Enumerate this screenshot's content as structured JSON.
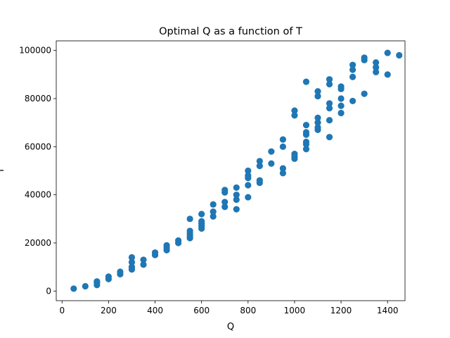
{
  "chart_data": {
    "type": "scatter",
    "title": "Optimal Q as a function of T",
    "xlabel": "Q",
    "ylabel": "T",
    "xlim": [
      -25,
      1475
    ],
    "ylim": [
      -4000,
      104000
    ],
    "xticks": [
      0,
      200,
      400,
      600,
      800,
      1000,
      1200,
      1400
    ],
    "yticks": [
      0,
      20000,
      40000,
      60000,
      80000,
      100000
    ],
    "grid": false,
    "color": "#1f77b4",
    "points": [
      [
        50,
        1000
      ],
      [
        100,
        2000
      ],
      [
        150,
        2500
      ],
      [
        150,
        3500
      ],
      [
        150,
        4000
      ],
      [
        200,
        5000
      ],
      [
        200,
        6000
      ],
      [
        250,
        7000
      ],
      [
        250,
        8000
      ],
      [
        300,
        9000
      ],
      [
        300,
        10000
      ],
      [
        300,
        12000
      ],
      [
        300,
        14000
      ],
      [
        350,
        11000
      ],
      [
        350,
        13000
      ],
      [
        400,
        15000
      ],
      [
        400,
        16000
      ],
      [
        450,
        17000
      ],
      [
        450,
        18000
      ],
      [
        450,
        19000
      ],
      [
        500,
        20000
      ],
      [
        500,
        21000
      ],
      [
        550,
        22000
      ],
      [
        550,
        23000
      ],
      [
        550,
        24000
      ],
      [
        550,
        25000
      ],
      [
        550,
        30000
      ],
      [
        600,
        26000
      ],
      [
        600,
        27000
      ],
      [
        600,
        28000
      ],
      [
        600,
        29000
      ],
      [
        600,
        32000
      ],
      [
        650,
        31000
      ],
      [
        650,
        33000
      ],
      [
        650,
        36000
      ],
      [
        700,
        35000
      ],
      [
        700,
        37000
      ],
      [
        700,
        41000
      ],
      [
        700,
        42000
      ],
      [
        750,
        34000
      ],
      [
        750,
        38000
      ],
      [
        750,
        40000
      ],
      [
        750,
        43000
      ],
      [
        800,
        39000
      ],
      [
        800,
        44000
      ],
      [
        800,
        47000
      ],
      [
        800,
        48000
      ],
      [
        800,
        50000
      ],
      [
        850,
        45000
      ],
      [
        850,
        46000
      ],
      [
        850,
        52000
      ],
      [
        850,
        54000
      ],
      [
        900,
        53000
      ],
      [
        900,
        58000
      ],
      [
        950,
        49000
      ],
      [
        950,
        51000
      ],
      [
        950,
        60000
      ],
      [
        950,
        63000
      ],
      [
        1000,
        55000
      ],
      [
        1000,
        56000
      ],
      [
        1000,
        57000
      ],
      [
        1000,
        73000
      ],
      [
        1000,
        75000
      ],
      [
        1050,
        59000
      ],
      [
        1050,
        61000
      ],
      [
        1050,
        62000
      ],
      [
        1050,
        65000
      ],
      [
        1050,
        66000
      ],
      [
        1050,
        69000
      ],
      [
        1050,
        87000
      ],
      [
        1100,
        67000
      ],
      [
        1100,
        68000
      ],
      [
        1100,
        70000
      ],
      [
        1100,
        72000
      ],
      [
        1100,
        81000
      ],
      [
        1100,
        83000
      ],
      [
        1150,
        64000
      ],
      [
        1150,
        71000
      ],
      [
        1150,
        76000
      ],
      [
        1150,
        78000
      ],
      [
        1150,
        86000
      ],
      [
        1150,
        88000
      ],
      [
        1200,
        74000
      ],
      [
        1200,
        77000
      ],
      [
        1200,
        80000
      ],
      [
        1200,
        84000
      ],
      [
        1200,
        85000
      ],
      [
        1250,
        79000
      ],
      [
        1250,
        89000
      ],
      [
        1250,
        92000
      ],
      [
        1250,
        94000
      ],
      [
        1300,
        82000
      ],
      [
        1300,
        96000
      ],
      [
        1300,
        97000
      ],
      [
        1350,
        91000
      ],
      [
        1350,
        93000
      ],
      [
        1350,
        95000
      ],
      [
        1400,
        90000
      ],
      [
        1400,
        99000
      ],
      [
        1450,
        98000
      ]
    ]
  }
}
